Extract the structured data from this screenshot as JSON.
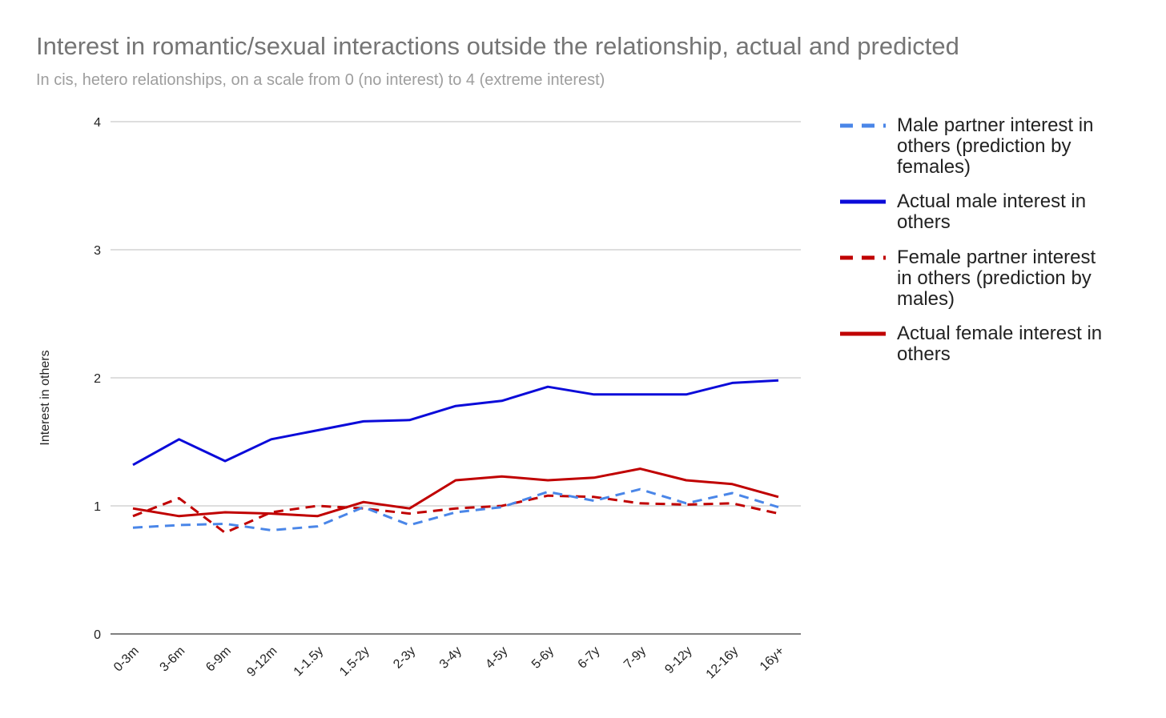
{
  "chart_data": {
    "type": "line",
    "title": "Interest in romantic/sexual interactions outside the relationship, actual and predicted",
    "subtitle": "In cis, hetero relationships, on a scale from 0 (no interest) to 4 (extreme interest)",
    "xlabel": "",
    "ylabel": "Interest in others",
    "ylim": [
      0,
      4
    ],
    "yticks": [
      "0",
      "1",
      "2",
      "3",
      "4"
    ],
    "grid": true,
    "legend_position": "right",
    "categories": [
      "0-3m",
      "3-6m",
      "6-9m",
      "9-12m",
      "1-1.5y",
      "1.5-2y",
      "2-3y",
      "3-4y",
      "4-5y",
      "5-6y",
      "6-7y",
      "7-9y",
      "9-12y",
      "12-16y",
      "16y+"
    ],
    "series": [
      {
        "name": "Male partner interest in others (prediction by females)",
        "legend_lines": [
          "Male partner interest in",
          "others (prediction by",
          "females)"
        ],
        "color": "#4a86e8",
        "style": "dashed",
        "values": [
          0.83,
          0.85,
          0.86,
          0.81,
          0.84,
          0.99,
          0.85,
          0.95,
          0.99,
          1.11,
          1.04,
          1.13,
          1.02,
          1.1,
          0.99
        ]
      },
      {
        "name": "Actual male interest in others",
        "legend_lines": [
          "Actual male interest in",
          "others"
        ],
        "color": "#0b0bd9",
        "style": "solid",
        "values": [
          1.32,
          1.52,
          1.35,
          1.52,
          1.59,
          1.66,
          1.67,
          1.78,
          1.82,
          1.93,
          1.87,
          1.87,
          1.87,
          1.96,
          1.98
        ]
      },
      {
        "name": "Female partner interest in others (prediction by males)",
        "legend_lines": [
          "Female partner interest",
          "in others (prediction by",
          "males)"
        ],
        "color": "#c00000",
        "style": "dashed",
        "values": [
          0.92,
          1.06,
          0.79,
          0.95,
          1.0,
          0.98,
          0.94,
          0.98,
          1.0,
          1.08,
          1.07,
          1.02,
          1.01,
          1.02,
          0.94
        ]
      },
      {
        "name": "Actual female interest in others",
        "legend_lines": [
          "Actual female interest in",
          "others"
        ],
        "color": "#c00000",
        "style": "solid",
        "values": [
          0.98,
          0.92,
          0.95,
          0.94,
          0.92,
          1.03,
          0.98,
          1.2,
          1.23,
          1.2,
          1.22,
          1.29,
          1.2,
          1.17,
          1.07
        ]
      }
    ]
  }
}
